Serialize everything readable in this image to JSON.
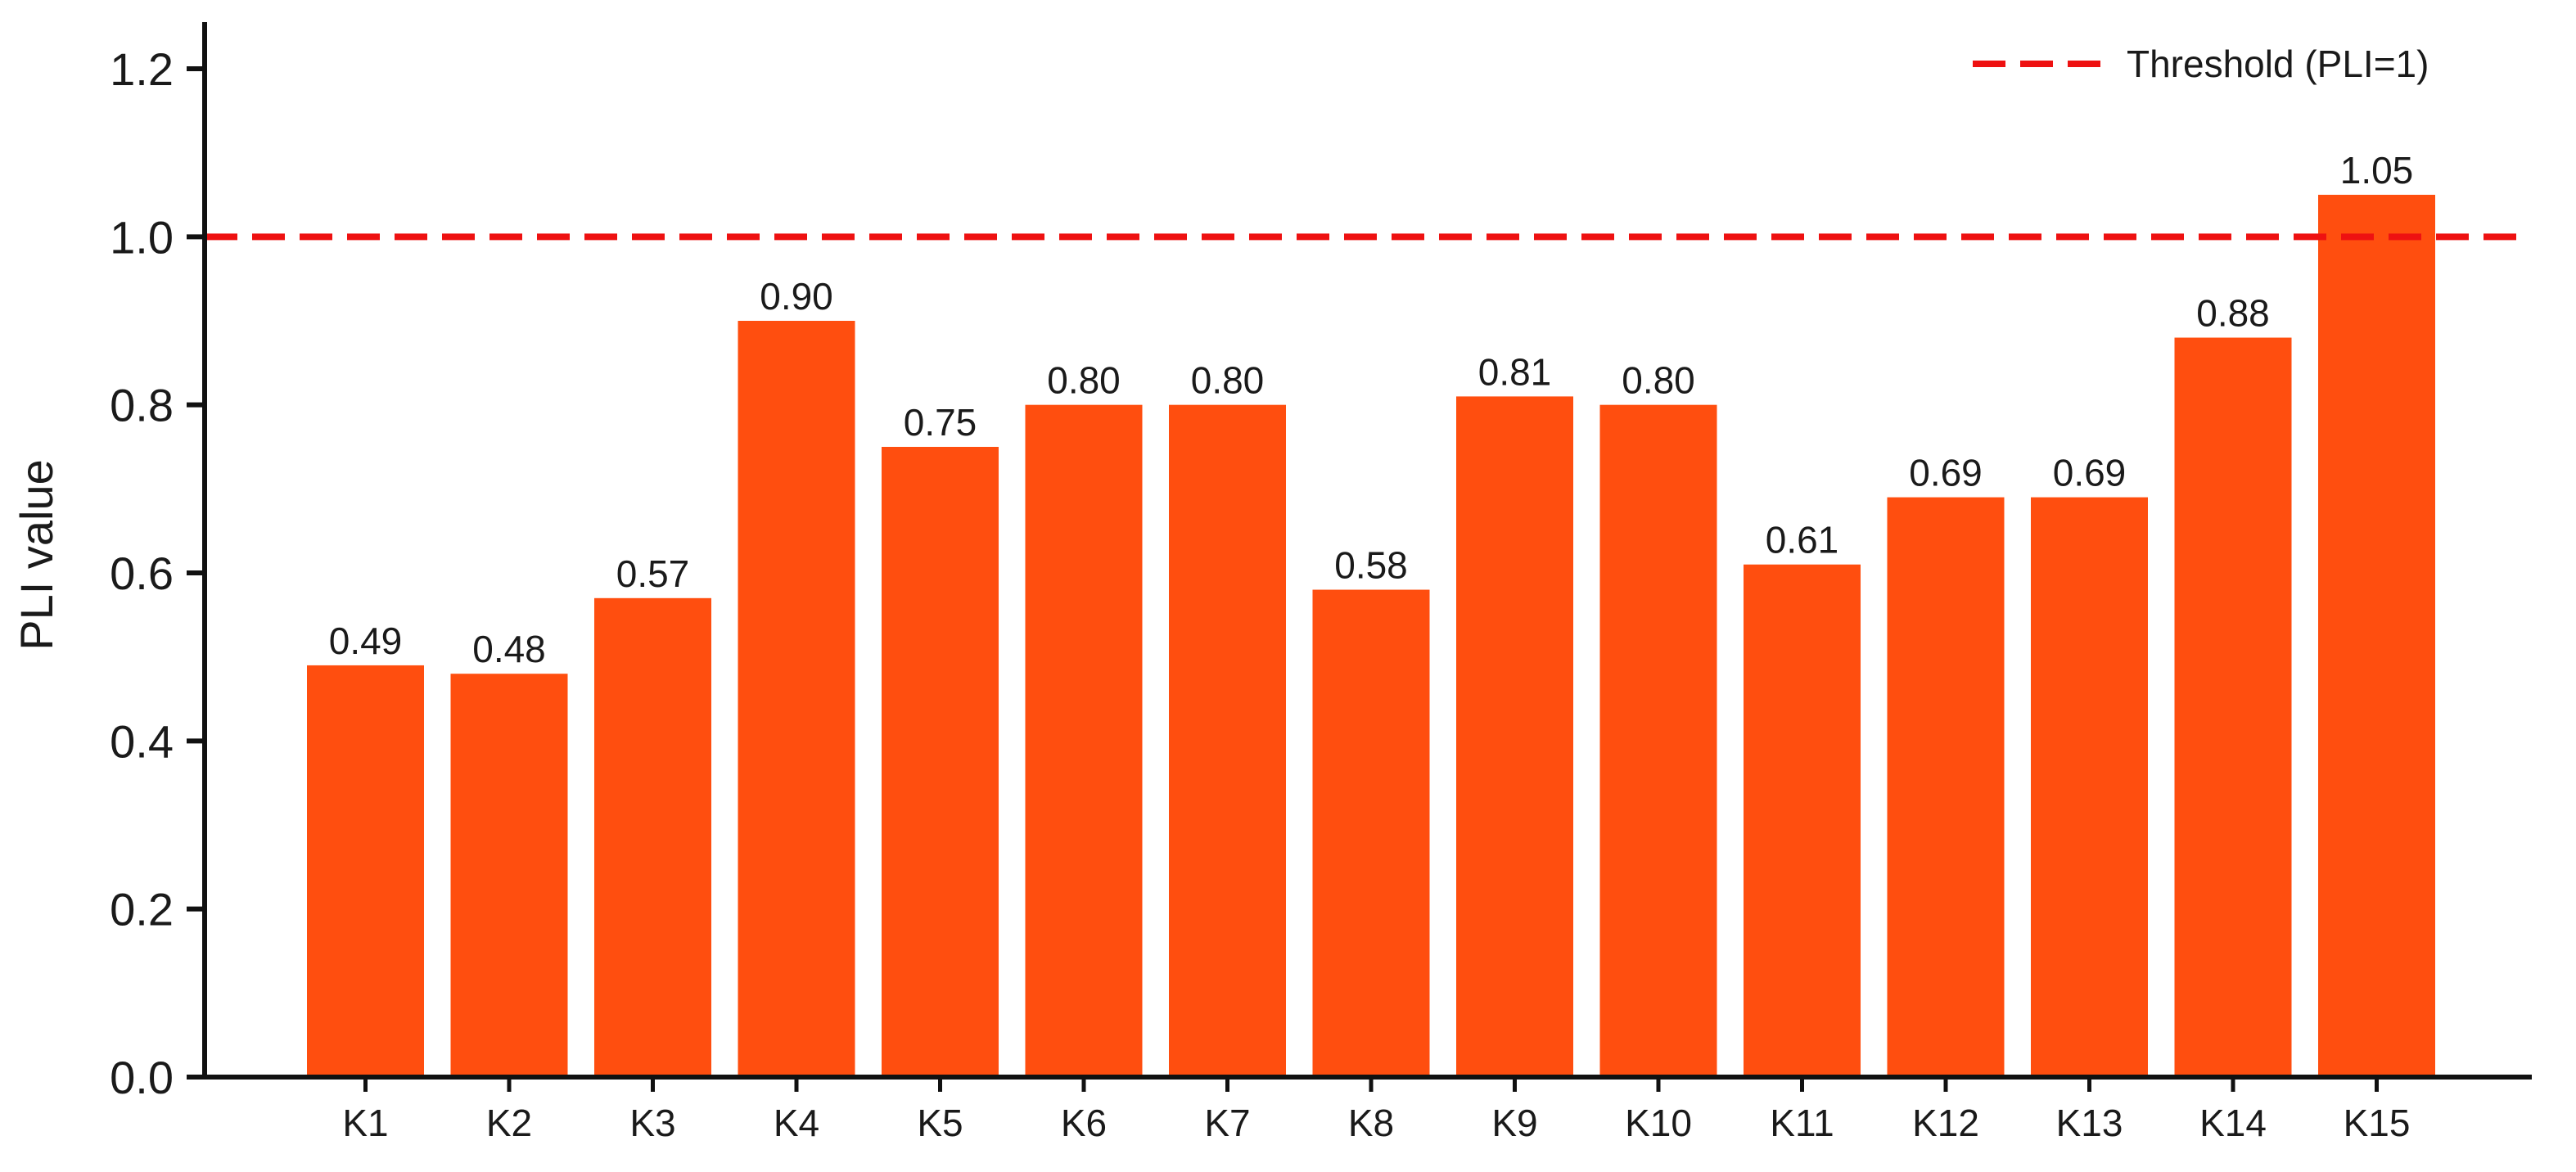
{
  "chart_data": {
    "type": "bar",
    "categories": [
      "K1",
      "K2",
      "K3",
      "K4",
      "K5",
      "K6",
      "K7",
      "K8",
      "K9",
      "K10",
      "K11",
      "K12",
      "K13",
      "K14",
      "K15"
    ],
    "values": [
      0.49,
      0.48,
      0.57,
      0.9,
      0.75,
      0.8,
      0.8,
      0.58,
      0.81,
      0.8,
      0.61,
      0.69,
      0.69,
      0.88,
      1.05
    ],
    "value_labels": [
      "0.49",
      "0.48",
      "0.57",
      "0.90",
      "0.75",
      "0.80",
      "0.80",
      "0.58",
      "0.81",
      "0.80",
      "0.61",
      "0.69",
      "0.69",
      "0.88",
      "1.05"
    ],
    "title": "",
    "xlabel": "",
    "ylabel": "PLI value",
    "ylim": [
      0,
      1.2
    ],
    "yticks": [
      "0.0",
      "0.2",
      "0.4",
      "0.6",
      "0.8",
      "1.0",
      "1.2"
    ],
    "ytick_values": [
      0,
      0.2,
      0.4,
      0.6,
      0.8,
      1.0,
      1.2
    ],
    "grid": false,
    "bar_color": "#FF4E0F",
    "reference_line": {
      "value": 1.0,
      "label": "Threshold (PLI=1)",
      "color": "#EE1111",
      "style": "dashed"
    },
    "legend": {
      "position": "top-right",
      "entries": [
        "Threshold (PLI=1)"
      ]
    }
  }
}
